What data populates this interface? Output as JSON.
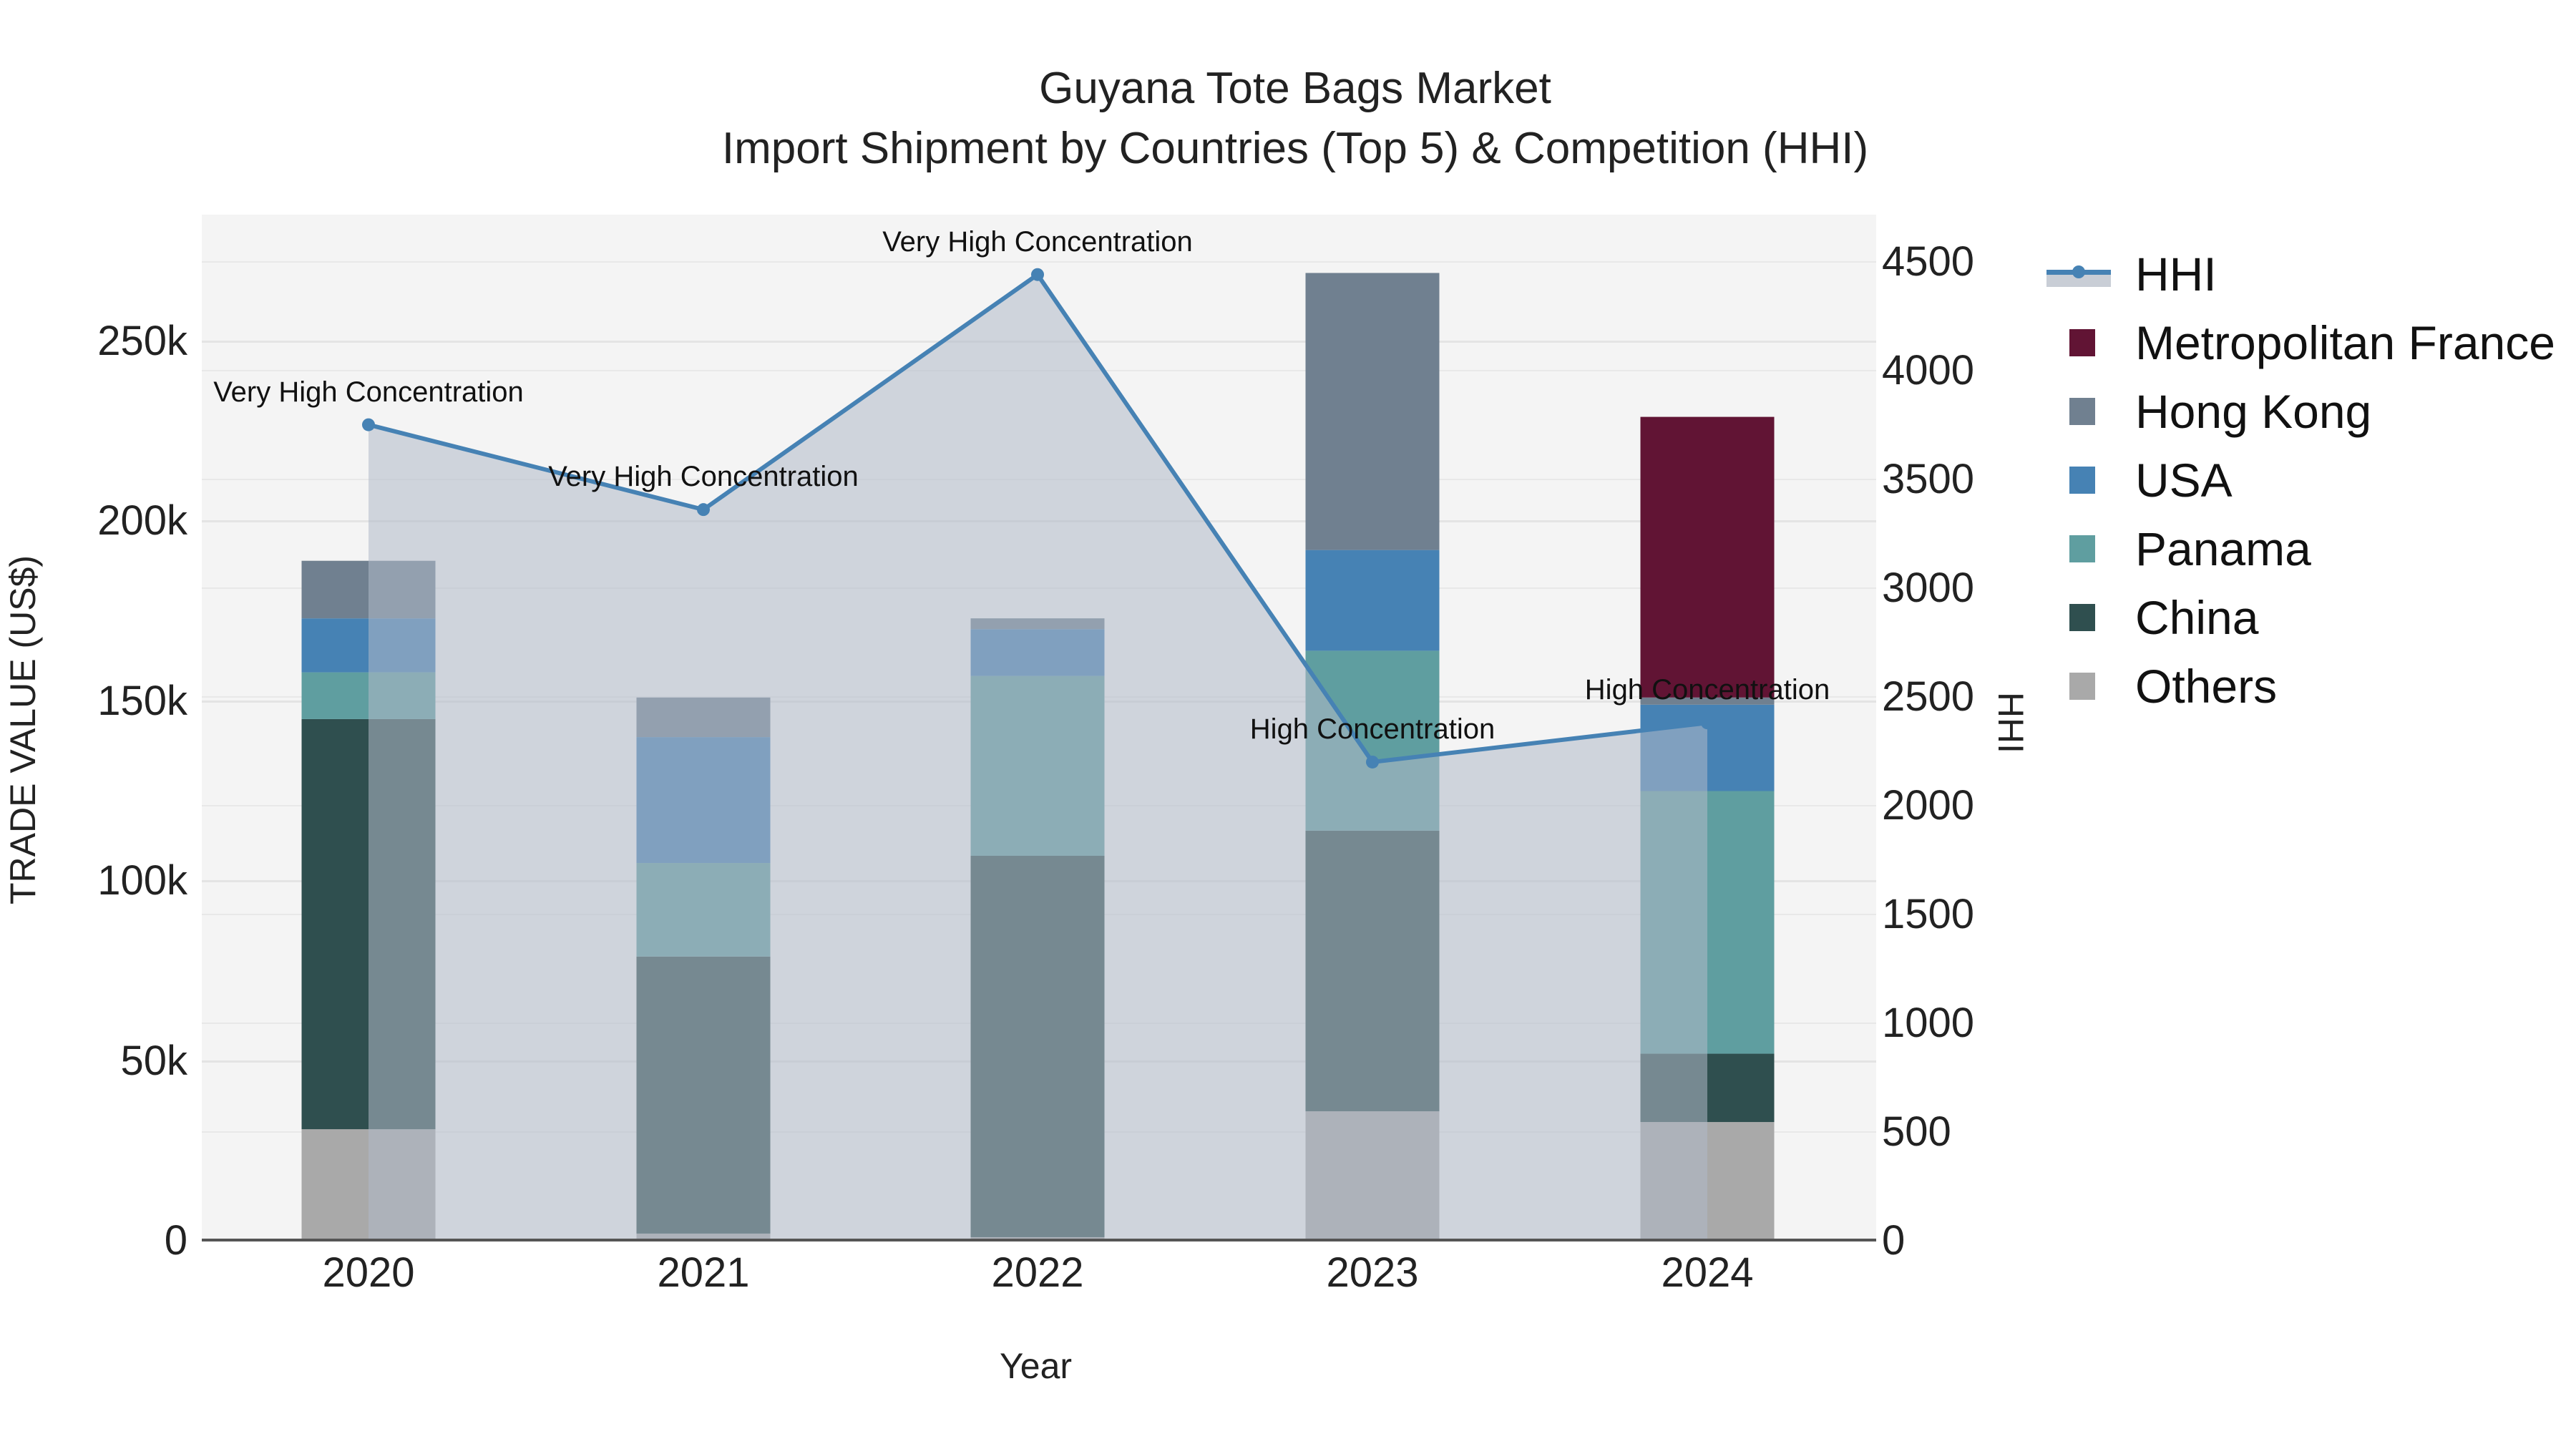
{
  "title": {
    "line1": "Guyana Tote Bags Market",
    "line2": "Import Shipment by Countries (Top 5) & Competition (HHI)"
  },
  "axes": {
    "x_title": "Year",
    "y_left_title": "TRADE VALUE (US$)",
    "y_right_title": "HHI",
    "y_left_ticks": [
      "0",
      "50k",
      "100k",
      "150k",
      "200k",
      "250k"
    ],
    "y_right_ticks": [
      "0",
      "500",
      "1000",
      "1500",
      "2000",
      "2500",
      "3000",
      "3500",
      "4000",
      "4500"
    ],
    "x_ticks": [
      "2020",
      "2021",
      "2022",
      "2023",
      "2024"
    ]
  },
  "legend": {
    "items": [
      {
        "label": "HHI",
        "type": "line",
        "color": "#4682b4"
      },
      {
        "label": "Metropolitan France",
        "type": "bar",
        "color": "#611434"
      },
      {
        "label": "Hong Kong",
        "type": "bar",
        "color": "#708090"
      },
      {
        "label": "USA",
        "type": "bar",
        "color": "#4682b4"
      },
      {
        "label": "Panama",
        "type": "bar",
        "color": "#5f9ea0"
      },
      {
        "label": "China",
        "type": "bar",
        "color": "#2f4f4f"
      },
      {
        "label": "Others",
        "type": "bar",
        "color": "#a9a9a9"
      }
    ]
  },
  "annotations": [
    {
      "year": "2020",
      "text": "Very High Concentration"
    },
    {
      "year": "2021",
      "text": "Very High Concentration"
    },
    {
      "year": "2022",
      "text": "Very High Concentration"
    },
    {
      "year": "2023",
      "text": "High Concentration"
    },
    {
      "year": "2024",
      "text": "High Concentration"
    }
  ],
  "chart_data": {
    "type": "bar",
    "stacked": true,
    "title": "Guyana Tote Bags Market — Import Shipment by Countries (Top 5) & Competition (HHI)",
    "xlabel": "Year",
    "ylabel": "TRADE VALUE (US$)",
    "y2label": "HHI",
    "ylim": [
      0,
      282000
    ],
    "y2lim": [
      0,
      4700
    ],
    "grid": true,
    "legend_position": "right",
    "categories": [
      "2020",
      "2021",
      "2022",
      "2023",
      "2024"
    ],
    "series": [
      {
        "name": "Others",
        "color": "#a9a9a9",
        "values": [
          31000,
          2000,
          1000,
          36000,
          33000
        ]
      },
      {
        "name": "China",
        "color": "#2f4f4f",
        "values": [
          114000,
          77000,
          106000,
          78000,
          19000
        ]
      },
      {
        "name": "Panama",
        "color": "#5f9ea0",
        "values": [
          13000,
          26000,
          50000,
          50000,
          73000
        ]
      },
      {
        "name": "USA",
        "color": "#4682b4",
        "values": [
          15000,
          35000,
          13000,
          28000,
          24000
        ]
      },
      {
        "name": "Hong Kong",
        "color": "#708090",
        "values": [
          16000,
          11000,
          3000,
          77000,
          2000
        ]
      },
      {
        "name": "Metropolitan France",
        "color": "#611434",
        "values": [
          0,
          0,
          0,
          0,
          78000
        ]
      }
    ],
    "line_series": {
      "name": "HHI",
      "axis": "right",
      "color": "#4682b4",
      "fill": "tozeroy",
      "values": [
        3750,
        3360,
        4440,
        2200,
        2380
      ],
      "labels": [
        "Very High Concentration",
        "Very High Concentration",
        "Very High Concentration",
        "High Concentration",
        "High Concentration"
      ]
    },
    "totals": [
      189000,
      151000,
      173000,
      269000,
      229000
    ]
  }
}
